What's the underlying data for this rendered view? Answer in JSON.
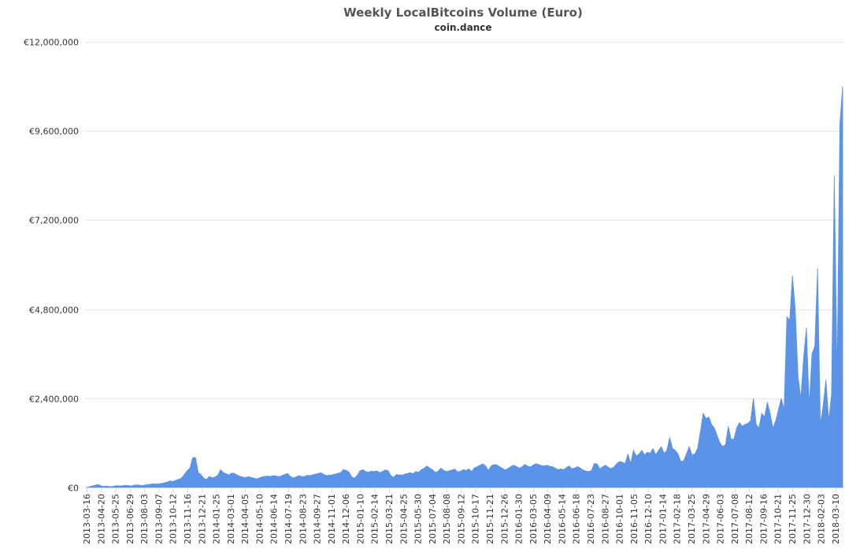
{
  "chart_data": {
    "type": "area",
    "title": "Weekly LocalBitcoins Volume (Euro)",
    "subtitle": "coin.dance",
    "xlabel": "",
    "ylabel": "",
    "ylim": [
      0,
      12000000
    ],
    "y_ticks": [
      "€0",
      "€2,400,000",
      "€4,800,000",
      "€7,200,000",
      "€9,600,000",
      "€12,000,000"
    ],
    "y_tick_values": [
      0,
      2400000,
      4800000,
      7200000,
      9600000,
      12000000
    ],
    "x_ticks": [
      "2013-03-16",
      "2013-04-20",
      "2013-05-25",
      "2013-06-29",
      "2013-08-03",
      "2013-09-07",
      "2013-10-12",
      "2013-11-16",
      "2013-12-21",
      "2014-01-25",
      "2014-03-01",
      "2014-04-05",
      "2014-05-10",
      "2014-06-14",
      "2014-07-19",
      "2014-08-23",
      "2014-09-27",
      "2014-11-01",
      "2014-12-06",
      "2015-01-10",
      "2015-02-14",
      "2015-03-21",
      "2015-04-25",
      "2015-05-30",
      "2015-07-04",
      "2015-08-08",
      "2015-09-12",
      "2015-10-17",
      "2015-11-21",
      "2015-12-26",
      "2016-01-30",
      "2016-03-05",
      "2016-04-09",
      "2016-05-14",
      "2016-06-18",
      "2016-07-23",
      "2016-08-27",
      "2016-10-01",
      "2016-11-05",
      "2016-12-10",
      "2017-01-14",
      "2017-02-18",
      "2017-03-25",
      "2017-04-29",
      "2017-06-03",
      "2017-07-08",
      "2017-08-12",
      "2017-09-16",
      "2017-10-21",
      "2017-11-25",
      "2017-12-30",
      "2018-02-03",
      "2018-03-10"
    ],
    "grid": true,
    "legend": "none",
    "color": "#5b93e9",
    "series": [
      {
        "values": [
          0,
          20000,
          40000,
          60000,
          80000,
          50000,
          30000,
          40000,
          30000,
          20000,
          40000,
          50000,
          40000,
          50000,
          60000,
          50000,
          40000,
          60000,
          70000,
          60000,
          50000,
          70000,
          80000,
          90000,
          100000,
          90000,
          100000,
          110000,
          130000,
          150000,
          180000,
          160000,
          200000,
          220000,
          250000,
          350000,
          450000,
          520000,
          800000,
          810000,
          400000,
          350000,
          250000,
          220000,
          300000,
          260000,
          280000,
          330000,
          480000,
          400000,
          370000,
          340000,
          390000,
          380000,
          330000,
          300000,
          280000,
          270000,
          290000,
          270000,
          250000,
          230000,
          260000,
          290000,
          300000,
          310000,
          300000,
          320000,
          310000,
          290000,
          320000,
          350000,
          380000,
          300000,
          260000,
          280000,
          320000,
          300000,
          290000,
          330000,
          320000,
          340000,
          360000,
          380000,
          400000,
          350000,
          320000,
          330000,
          340000,
          360000,
          380000,
          400000,
          480000,
          460000,
          420000,
          290000,
          250000,
          330000,
          450000,
          480000,
          430000,
          410000,
          440000,
          430000,
          450000,
          400000,
          430000,
          470000,
          460000,
          330000,
          270000,
          350000,
          340000,
          330000,
          360000,
          380000,
          400000,
          370000,
          430000,
          410000,
          480000,
          520000,
          580000,
          520000,
          480000,
          400000,
          440000,
          520000,
          460000,
          430000,
          450000,
          470000,
          500000,
          420000,
          440000,
          480000,
          460000,
          500000,
          430000,
          530000,
          560000,
          600000,
          640000,
          580000,
          460000,
          580000,
          620000,
          610000,
          560000,
          520000,
          470000,
          510000,
          560000,
          600000,
          570000,
          520000,
          550000,
          620000,
          580000,
          550000,
          600000,
          640000,
          620000,
          590000,
          580000,
          600000,
          570000,
          560000,
          520000,
          480000,
          500000,
          480000,
          540000,
          580000,
          500000,
          530000,
          560000,
          520000,
          470000,
          440000,
          430000,
          460000,
          650000,
          630000,
          500000,
          560000,
          600000,
          540000,
          510000,
          550000,
          640000,
          700000,
          680000,
          640000,
          900000,
          650000,
          1000000,
          850000,
          900000,
          1000000,
          880000,
          950000,
          920000,
          1050000,
          880000,
          1000000,
          1100000,
          920000,
          1000000,
          1350000,
          1050000,
          1000000,
          900000,
          700000,
          720000,
          900000,
          1100000,
          880000,
          900000,
          1050000,
          1500000,
          2000000,
          1850000,
          1900000,
          1700000,
          1600000,
          1400000,
          1200000,
          1100000,
          1150000,
          1650000,
          1300000,
          1300000,
          1600000,
          1750000,
          1650000,
          1700000,
          1720000,
          1800000,
          2400000,
          1700000,
          1600000,
          2000000,
          1900000,
          2300000,
          2000000,
          1600000,
          1800000,
          2100000,
          2400000,
          2100000,
          4600000,
          4500000,
          5700000,
          4800000,
          3000000,
          2400000,
          3500000,
          4300000,
          2200000,
          3600000,
          3800000,
          5900000,
          1700000,
          2200000,
          2900000,
          1800000,
          2500000,
          8400000,
          3000000,
          9800000,
          10800000
        ]
      }
    ]
  }
}
